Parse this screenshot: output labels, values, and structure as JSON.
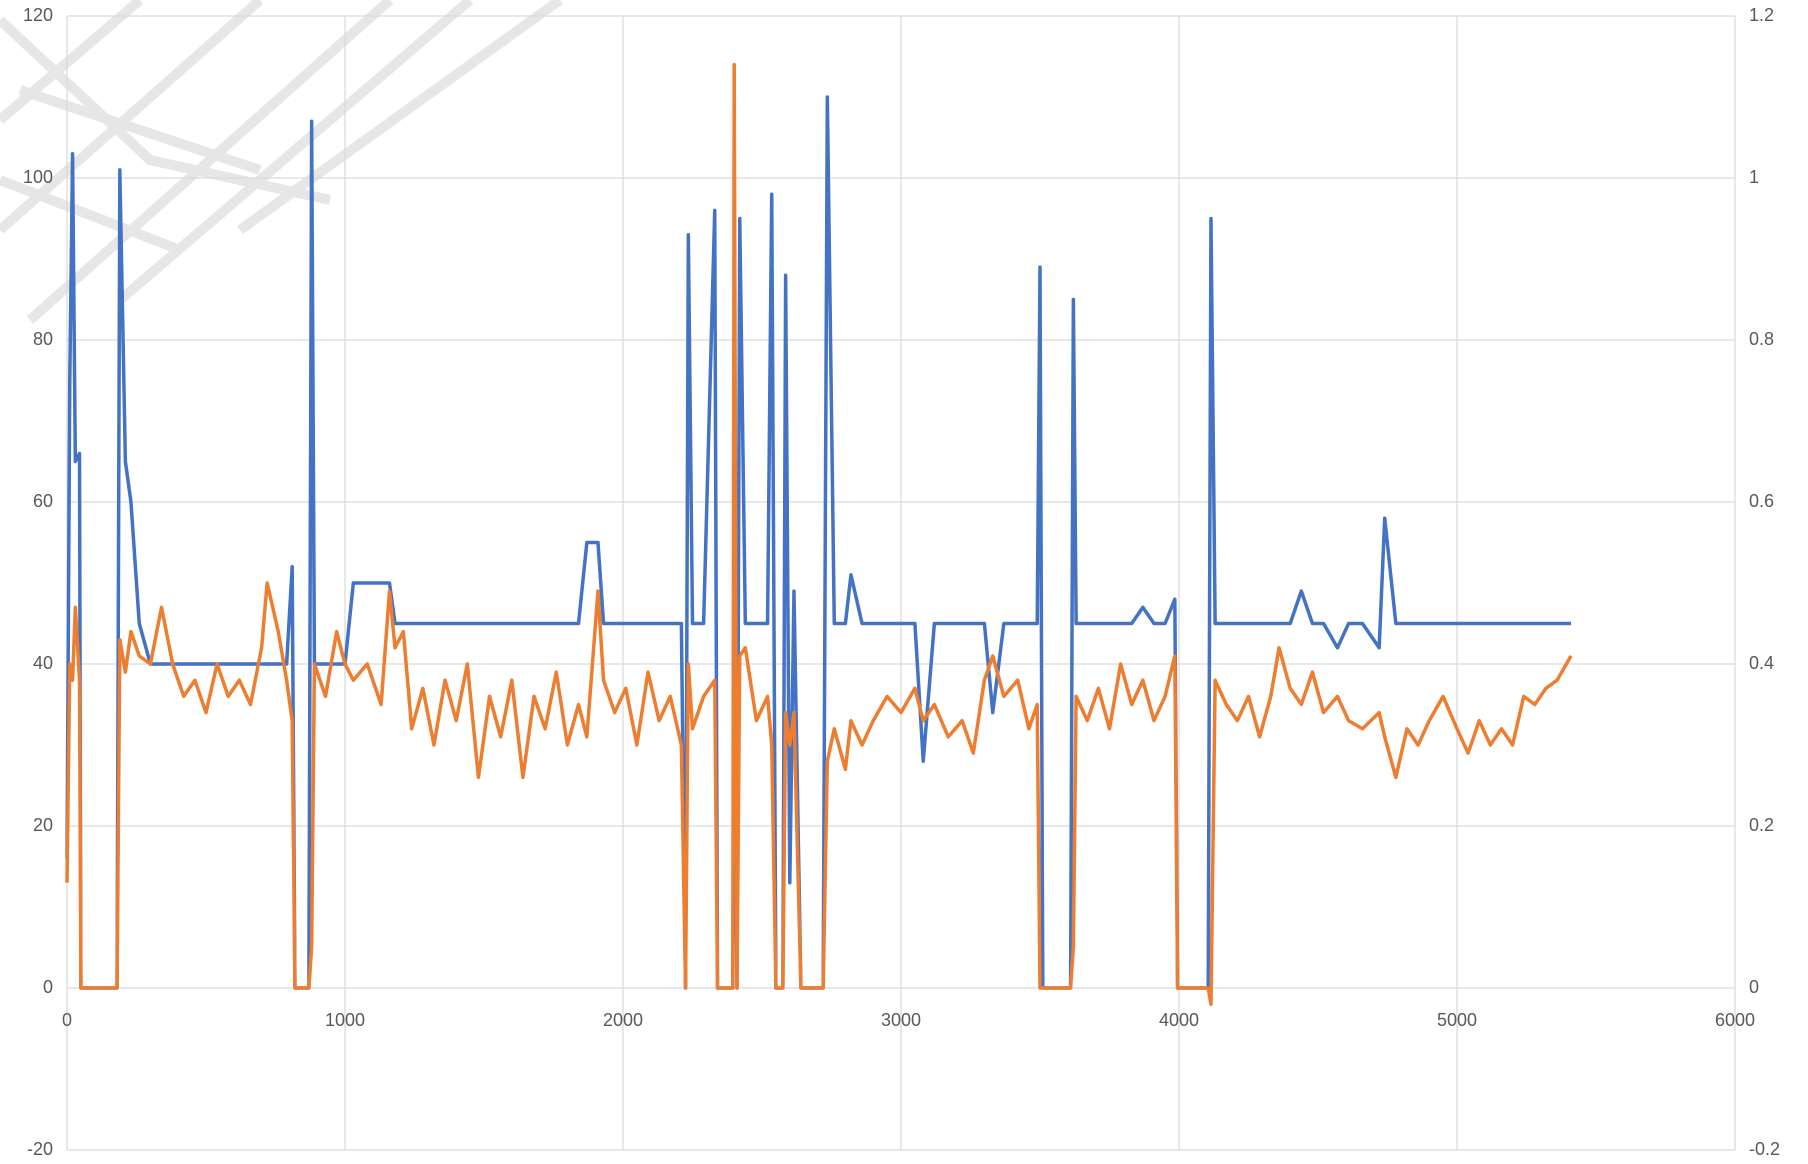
{
  "chart_data": {
    "type": "line",
    "x": [
      0,
      10,
      20,
      30,
      45,
      50,
      180,
      190,
      210,
      230,
      260,
      300,
      340,
      380,
      420,
      460,
      500,
      540,
      580,
      620,
      660,
      700,
      720,
      760,
      790,
      810,
      820,
      870,
      880,
      890,
      930,
      970,
      1000,
      1030,
      1080,
      1130,
      1160,
      1180,
      1210,
      1240,
      1280,
      1320,
      1360,
      1400,
      1440,
      1480,
      1520,
      1560,
      1600,
      1640,
      1680,
      1720,
      1760,
      1800,
      1840,
      1870,
      1910,
      1930,
      1970,
      2010,
      2050,
      2090,
      2130,
      2170,
      2210,
      2225,
      2235,
      2250,
      2290,
      2330,
      2340,
      2395,
      2400,
      2410,
      2420,
      2440,
      2480,
      2520,
      2535,
      2550,
      2575,
      2585,
      2600,
      2615,
      2640,
      2720,
      2735,
      2760,
      2800,
      2820,
      2860,
      2900,
      2950,
      3000,
      3050,
      3080,
      3120,
      3170,
      3220,
      3260,
      3300,
      3330,
      3370,
      3420,
      3460,
      3490,
      3500,
      3510,
      3610,
      3620,
      3630,
      3670,
      3710,
      3750,
      3790,
      3830,
      3870,
      3910,
      3950,
      3985,
      3995,
      4105,
      4115,
      4130,
      4170,
      4210,
      4250,
      4290,
      4330,
      4360,
      4400,
      4440,
      4480,
      4520,
      4570,
      4610,
      4660,
      4720,
      4740,
      4780,
      4820,
      4860,
      4900,
      4950,
      5000,
      5040,
      5080,
      5120,
      5160,
      5200,
      5240,
      5280,
      5320,
      5360,
      5410
    ],
    "series": [
      {
        "color": "#4472c4",
        "axis": "y",
        "values": [
          16,
          75,
          103,
          65,
          66,
          0,
          0,
          101,
          65,
          60,
          45,
          40,
          40,
          40,
          40,
          40,
          40,
          40,
          40,
          40,
          40,
          40,
          40,
          40,
          40,
          52,
          0,
          0,
          107,
          40,
          40,
          40,
          40,
          50,
          50,
          50,
          50,
          45,
          45,
          45,
          45,
          45,
          45,
          45,
          45,
          45,
          45,
          45,
          45,
          45,
          45,
          45,
          45,
          45,
          45,
          55,
          55,
          45,
          45,
          45,
          45,
          45,
          45,
          45,
          45,
          0,
          93,
          45,
          45,
          96,
          0,
          0,
          45,
          0,
          95,
          45,
          45,
          45,
          98,
          0,
          0,
          88,
          13,
          49,
          0,
          0,
          110,
          45,
          45,
          51,
          45,
          45,
          45,
          45,
          45,
          28,
          45,
          45,
          45,
          45,
          45,
          34,
          45,
          45,
          45,
          45,
          89,
          0,
          0,
          85,
          45,
          45,
          45,
          45,
          45,
          45,
          47,
          45,
          45,
          48,
          0,
          0,
          95,
          45,
          45,
          45,
          45,
          45,
          45,
          45,
          45,
          49,
          45,
          45,
          42,
          45,
          45,
          42,
          58,
          45,
          45,
          45,
          45,
          45,
          45,
          45,
          45,
          45,
          45,
          45,
          45,
          45,
          45,
          45,
          45
        ]
      },
      {
        "color": "#ed7d31",
        "axis": "y2",
        "values": [
          0.13,
          0.4,
          0.38,
          0.47,
          0.38,
          0,
          0,
          0.43,
          0.39,
          0.44,
          0.41,
          0.4,
          0.47,
          0.4,
          0.36,
          0.38,
          0.34,
          0.4,
          0.36,
          0.38,
          0.35,
          0.42,
          0.5,
          0.44,
          0.38,
          0.33,
          0,
          0,
          0.05,
          0.4,
          0.36,
          0.44,
          0.4,
          0.38,
          0.4,
          0.35,
          0.49,
          0.42,
          0.44,
          0.32,
          0.37,
          0.3,
          0.38,
          0.33,
          0.4,
          0.26,
          0.36,
          0.31,
          0.38,
          0.26,
          0.36,
          0.32,
          0.39,
          0.3,
          0.35,
          0.31,
          0.49,
          0.38,
          0.34,
          0.37,
          0.3,
          0.39,
          0.33,
          0.36,
          0.3,
          0,
          0.4,
          0.32,
          0.36,
          0.38,
          0,
          0,
          1.14,
          0,
          0.41,
          0.42,
          0.33,
          0.36,
          0.3,
          0,
          0,
          0.34,
          0.3,
          0.34,
          0,
          0,
          0.28,
          0.32,
          0.27,
          0.33,
          0.3,
          0.33,
          0.36,
          0.34,
          0.37,
          0.33,
          0.35,
          0.31,
          0.33,
          0.29,
          0.38,
          0.41,
          0.36,
          0.38,
          0.32,
          0.35,
          0,
          0,
          0,
          0.05,
          0.36,
          0.33,
          0.37,
          0.32,
          0.4,
          0.35,
          0.38,
          0.33,
          0.36,
          0.41,
          0,
          0,
          -0.02,
          0.38,
          0.35,
          0.33,
          0.36,
          0.31,
          0.36,
          0.42,
          0.37,
          0.35,
          0.39,
          0.34,
          0.36,
          0.33,
          0.32,
          0.34,
          0.31,
          0.26,
          0.32,
          0.3,
          0.33,
          0.36,
          0.32,
          0.29,
          0.33,
          0.3,
          0.32,
          0.3,
          0.36,
          0.35,
          0.37,
          0.38,
          0.41
        ]
      }
    ],
    "xlim": [
      0,
      6000
    ],
    "xticks": [
      0,
      1000,
      2000,
      3000,
      4000,
      5000,
      6000
    ],
    "ylim": [
      -20,
      120
    ],
    "yticks": [
      -20,
      0,
      20,
      40,
      60,
      80,
      100,
      120
    ],
    "y2lim": [
      -0.2,
      1.2
    ],
    "y2ticks": [
      -0.2,
      0,
      0.2,
      0.4,
      0.6,
      0.8,
      1,
      1.2
    ],
    "grid": true
  }
}
